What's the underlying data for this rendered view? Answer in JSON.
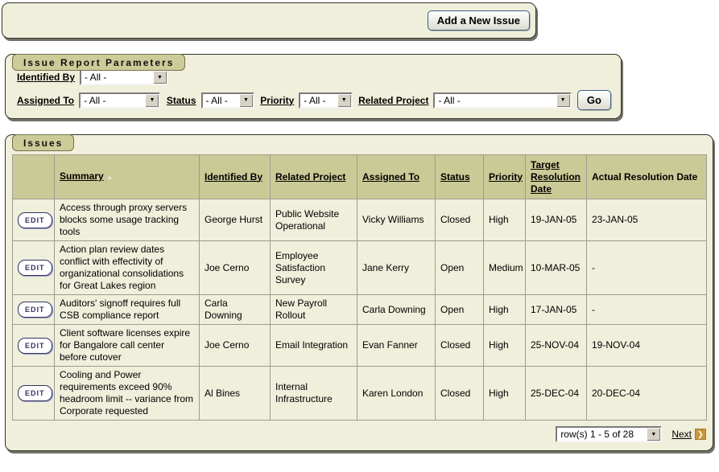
{
  "colors": {
    "region_bg": "#EFEFDB",
    "tab_bg": "#CCCC99",
    "table_header_bg": "#CACA96",
    "edit_button_accent": "#333366",
    "next_icon_bg": "#C9953C"
  },
  "top_bar": {
    "add_button_label": "Add a New Issue"
  },
  "filter_region": {
    "title": "Issue Report Parameters",
    "fields": [
      {
        "label": "Identified By",
        "value": "- All -"
      },
      {
        "label": "Assigned To",
        "value": "- All -"
      },
      {
        "label": "Status",
        "value": "- All -"
      },
      {
        "label": "Priority",
        "value": "- All -"
      },
      {
        "label": "Related Project",
        "value": "- All -"
      }
    ],
    "go_label": "Go",
    "dropdown_arrow_icon": "▼"
  },
  "issues_region": {
    "title": "Issues",
    "table": {
      "edit_label": "EDIT",
      "sort_ascending_icon": "▲",
      "columns": [
        {
          "label": "",
          "sortable": false
        },
        {
          "label": "Summary",
          "sortable": true,
          "sorted": "asc"
        },
        {
          "label": "Identified By",
          "sortable": true
        },
        {
          "label": "Related Project",
          "sortable": true
        },
        {
          "label": "Assigned To",
          "sortable": true
        },
        {
          "label": "Status",
          "sortable": true
        },
        {
          "label": "Priority",
          "sortable": true
        },
        {
          "label": "Target Resolution Date",
          "sortable": true
        },
        {
          "label": "Actual Resolution Date",
          "sortable": false
        }
      ],
      "rows": [
        {
          "summary": "Access through proxy servers blocks some usage tracking tools",
          "identified_by": "George Hurst",
          "related_project": "Public Website Operational",
          "assigned_to": "Vicky Williams",
          "status": "Closed",
          "priority": "High",
          "target_date": "19-JAN-05",
          "actual_date": "23-JAN-05"
        },
        {
          "summary": "Action plan review dates conflict with effectivity of organizational consolidations for Great Lakes region",
          "identified_by": "Joe Cerno",
          "related_project": "Employee Satisfaction Survey",
          "assigned_to": "Jane Kerry",
          "status": "Open",
          "priority": "Medium",
          "target_date": "10-MAR-05",
          "actual_date": "-"
        },
        {
          "summary": "Auditors' signoff requires full CSB compliance report",
          "identified_by": "Carla Downing",
          "related_project": "New Payroll Rollout",
          "assigned_to": "Carla Downing",
          "status": "Open",
          "priority": "High",
          "target_date": "17-JAN-05",
          "actual_date": "-"
        },
        {
          "summary": "Client software licenses expire for Bangalore call center before cutover",
          "identified_by": "Joe Cerno",
          "related_project": "Email Integration",
          "assigned_to": "Evan Fanner",
          "status": "Closed",
          "priority": "High",
          "target_date": "25-NOV-04",
          "actual_date": "19-NOV-04"
        },
        {
          "summary": "Cooling and Power requirements exceed 90% headroom limit -- variance from Corporate requested",
          "identified_by": "Al Bines",
          "related_project": "Internal Infrastructure",
          "assigned_to": "Karen London",
          "status": "Closed",
          "priority": "High",
          "target_date": "25-DEC-04",
          "actual_date": "20-DEC-04"
        }
      ]
    },
    "pagination": {
      "range_label": "row(s) 1 - 5 of 28",
      "next_label": "Next",
      "next_arrow_icon": "❯",
      "dropdown_arrow_icon": "▼"
    }
  }
}
